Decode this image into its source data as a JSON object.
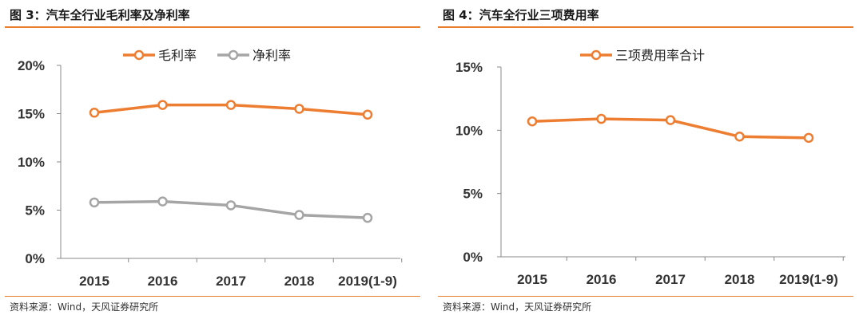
{
  "figures": [
    {
      "title": "图 3：汽车全行业毛利率及净利率",
      "source": "资料来源：Wind，天风证券研究所"
    },
    {
      "title": "图 4：汽车全行业三项费用率",
      "source": "资料来源：Wind，天风证券研究所"
    }
  ],
  "chart_data": [
    {
      "type": "line",
      "title": "",
      "xlabel": "",
      "ylabel": "",
      "categories": [
        "2015",
        "2016",
        "2017",
        "2018",
        "2019(1-9)"
      ],
      "y_ticks": [
        "0%",
        "5%",
        "10%",
        "15%",
        "20%"
      ],
      "ylim": [
        0,
        20
      ],
      "grid": false,
      "legend_position": "top",
      "series": [
        {
          "name": "毛利率",
          "color": "#ed7d31",
          "values": [
            15.1,
            15.9,
            15.9,
            15.5,
            14.9
          ]
        },
        {
          "name": "净利率",
          "color": "#a5a5a5",
          "values": [
            5.8,
            5.9,
            5.5,
            4.5,
            4.2
          ]
        }
      ]
    },
    {
      "type": "line",
      "title": "",
      "xlabel": "",
      "ylabel": "",
      "categories": [
        "2015",
        "2016",
        "2017",
        "2018",
        "2019(1-9)"
      ],
      "y_ticks": [
        "0%",
        "5%",
        "10%",
        "15%"
      ],
      "ylim": [
        0,
        15
      ],
      "grid": false,
      "legend_position": "top",
      "series": [
        {
          "name": "三项费用率合计",
          "color": "#ed7d31",
          "values": [
            10.7,
            10.9,
            10.8,
            9.5,
            9.4
          ]
        }
      ]
    }
  ]
}
